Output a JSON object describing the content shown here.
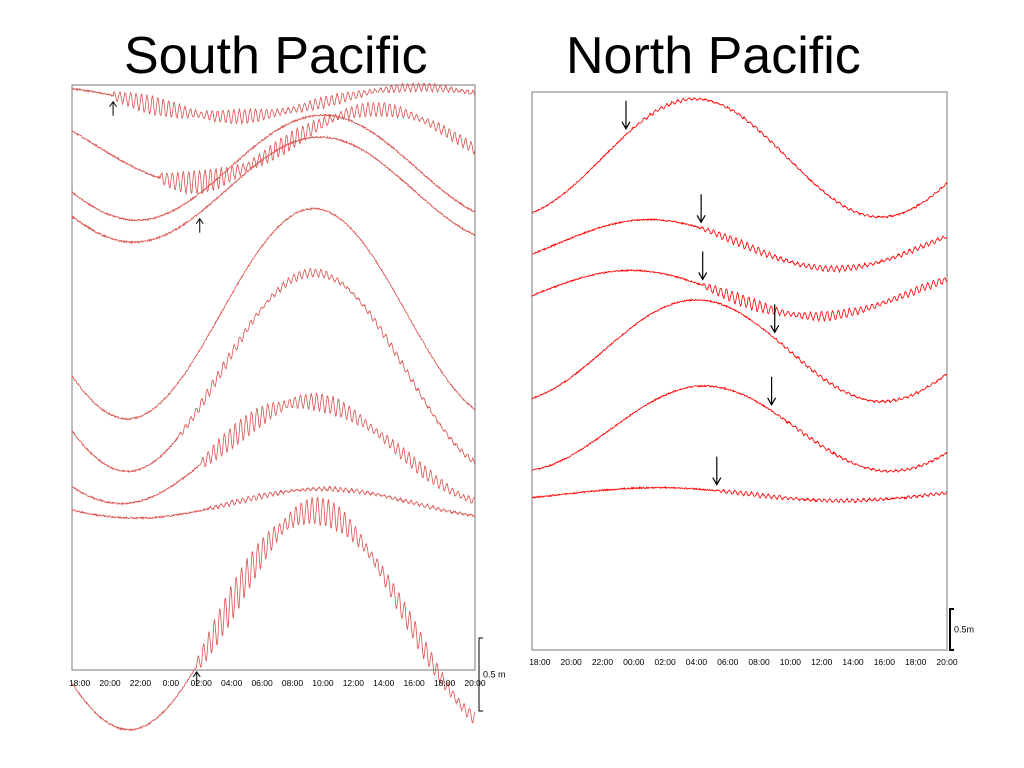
{
  "slide": {
    "south_title": "South Pacific",
    "north_title": "North Pacific"
  },
  "chart_data": [
    {
      "type": "line",
      "title": "South Pacific",
      "xlabel": "",
      "ylabel": "",
      "xtick_labels": [
        "18:00",
        "20:00",
        "22:00",
        "0:00",
        "02:00",
        "04:00",
        "06:00",
        "08:00",
        "10:00",
        "12:00",
        "14:00",
        "16:00",
        "18:00",
        "20:00"
      ],
      "scale_bar": {
        "label": "0.5 m",
        "meters": 0.5
      },
      "grid": false,
      "color": "#d9534f",
      "x_hours_range": [
        -6,
        20.5
      ],
      "tide_period_hours": 24.5,
      "series": [
        {
          "offset_m": 0.0,
          "amplitude_m": 0.1,
          "peak_hour": 16.8,
          "tsunami": {
            "onset_hour": -3.3,
            "amplitude_m": 0.07
          },
          "arrival_hour": -3.3
        },
        {
          "offset_m": -0.3,
          "amplitude_m": 0.25,
          "peak_hour": 14.0,
          "tsunami": {
            "onset_hour": -0.2,
            "amplitude_m": 0.09
          }
        },
        {
          "offset_m": -0.45,
          "amplitude_m": 0.36,
          "peak_hour": 10.5
        },
        {
          "offset_m": -0.6,
          "amplitude_m": 0.36,
          "peak_hour": 10.3,
          "arrival_hour": 2.4
        },
        {
          "offset_m": -1.45,
          "amplitude_m": 0.72,
          "peak_hour": 9.9
        },
        {
          "offset_m": -1.85,
          "amplitude_m": 0.68,
          "peak_hour": 9.9,
          "tsunami": {
            "onset_hour": 1.0,
            "amplitude_m": 0.04
          }
        },
        {
          "offset_m": -2.4,
          "amplitude_m": 0.35,
          "peak_hour": 9.5,
          "tsunami": {
            "onset_hour": 2.5,
            "amplitude_m": 0.09
          }
        },
        {
          "offset_m": -2.75,
          "amplitude_m": 0.1,
          "peak_hour": 10.5,
          "tsunami": {
            "onset_hour": 3.0,
            "amplitude_m": 0.02
          }
        },
        {
          "offset_m": -3.55,
          "amplitude_m": 0.75,
          "peak_hour": 10.0,
          "tsunami": {
            "onset_hour": 2.2,
            "amplitude_m": 0.14
          },
          "arrival_hour": 2.2
        }
      ]
    },
    {
      "type": "line",
      "title": "North Pacific",
      "xlabel": "",
      "ylabel": "",
      "xtick_labels": [
        "18:00",
        "20:00",
        "22:00",
        "00:00",
        "02:00",
        "04:00",
        "06:00",
        "08:00",
        "10:00",
        "12:00",
        "14:00",
        "16:00",
        "18:00",
        "20:00"
      ],
      "scale_bar": {
        "label": "0.5m",
        "meters": 0.5
      },
      "grid": false,
      "color": "#ff0000",
      "x_hours_range": [
        -6,
        20.5
      ],
      "tide_period_hours": 23.7,
      "series": [
        {
          "offset_m": 0.0,
          "amplitude_m": 0.72,
          "peak_hour": 4.4,
          "tsunami": {
            "onset_hour": 0.0,
            "amplitude_m": 0.02
          },
          "arrival_hour": 0.0
        },
        {
          "offset_m": -1.05,
          "amplitude_m": 0.3,
          "peak_hour": 1.5,
          "tsunami": {
            "onset_hour": 4.8,
            "amplitude_m": 0.05
          },
          "arrival_hour": 4.8
        },
        {
          "offset_m": -1.65,
          "amplitude_m": 0.28,
          "peak_hour": 0.3,
          "tsunami": {
            "onset_hour": 4.9,
            "amplitude_m": 0.08
          },
          "arrival_hour": 4.9
        },
        {
          "offset_m": -2.35,
          "amplitude_m": 0.62,
          "peak_hour": 4.5,
          "tsunami": {
            "onset_hour": 9.5,
            "amplitude_m": 0.02
          },
          "arrival_hour": 9.5
        },
        {
          "offset_m": -3.3,
          "amplitude_m": 0.52,
          "peak_hour": 5.0,
          "tsunami": {
            "onset_hour": 9.3,
            "amplitude_m": 0.02
          },
          "arrival_hour": 9.3
        },
        {
          "offset_m": -4.1,
          "amplitude_m": 0.08,
          "peak_hour": 2.0,
          "tsunami": {
            "onset_hour": 5.8,
            "amplitude_m": 0.03
          },
          "arrival_hour": 5.8
        }
      ]
    }
  ]
}
